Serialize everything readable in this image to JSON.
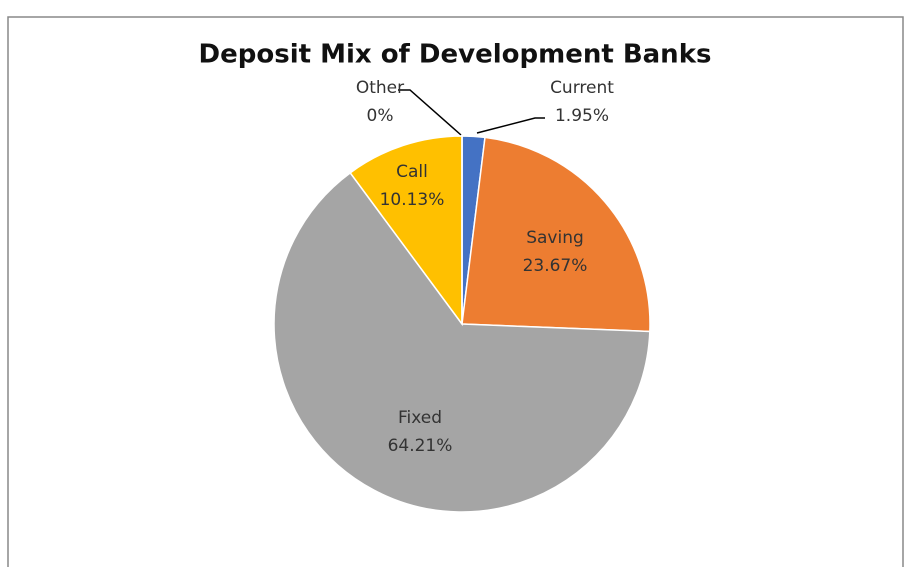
{
  "chart_data": {
    "type": "pie",
    "title": "Deposit Mix of Development Banks",
    "categories": [
      "Current",
      "Saving",
      "Fixed",
      "Call",
      "Other"
    ],
    "values": [
      1.95,
      23.67,
      64.21,
      10.13,
      0
    ],
    "value_labels": [
      "1.95%",
      "23.67%",
      "64.21%",
      "10.13%",
      "0%"
    ],
    "colors": [
      "#4472c4",
      "#ed7d31",
      "#a5a5a5",
      "#ffc000",
      "#5b9bd5"
    ]
  }
}
